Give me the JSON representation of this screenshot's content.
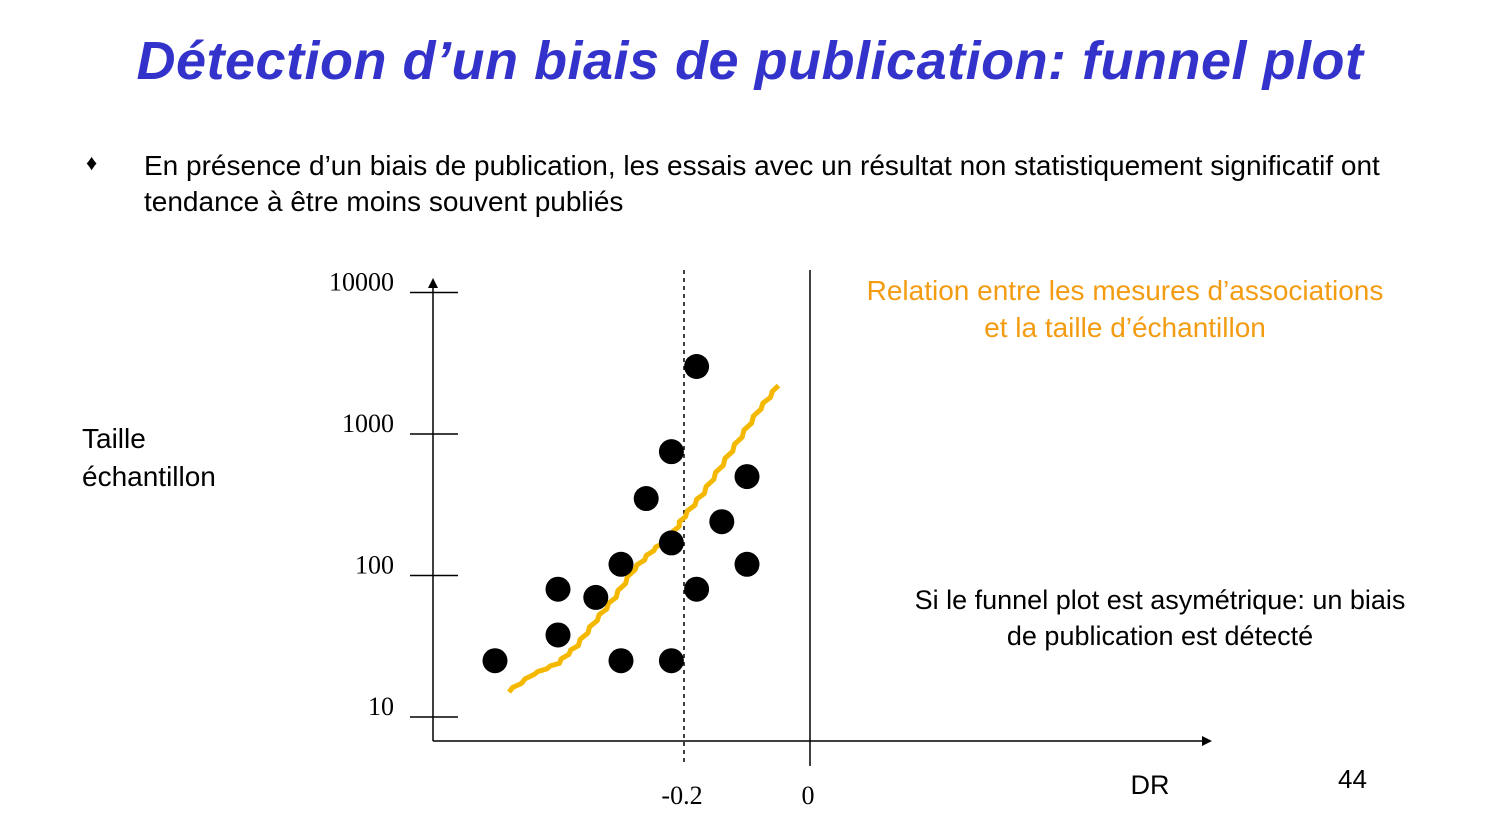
{
  "slide": {
    "title": "Détection d’un biais de publication: funnel plot",
    "bullet_marker": "♦",
    "bullet_text": "En présence d’un biais de publication, les essais avec un résultat non statistiquement significatif ont tendance à être moins souvent publiés",
    "y_axis_label": "Taille échantillon",
    "note_relation": "Relation entre les mesures d’associations et la taille d’échantillon",
    "note_asymmetry": "Si le funnel plot est asymétrique: un biais de publication est détecté",
    "page_number": "44"
  },
  "colors": {
    "title": "#3333cc",
    "trend_line": "#f5b800",
    "note_orange": "#f39c12",
    "points": "#000000"
  },
  "chart_data": {
    "type": "scatter",
    "title": "",
    "xlabel": "DR",
    "ylabel": "Taille échantillon",
    "x_ticks": [
      {
        "value": -0.2,
        "label": "-0.2"
      },
      {
        "value": 0,
        "label": "0"
      }
    ],
    "y_ticks": [
      {
        "value": 10,
        "label": "10"
      },
      {
        "value": 100,
        "label": "100"
      },
      {
        "value": 1000,
        "label": "1000"
      },
      {
        "value": 10000,
        "label": "10000"
      }
    ],
    "y_scale": "log",
    "xlim": [
      -0.6,
      0.65
    ],
    "ylim": [
      6,
      25000
    ],
    "reference_lines": [
      {
        "x": -0.2,
        "style": "dashed"
      },
      {
        "x": 0,
        "style": "solid"
      }
    ],
    "points": [
      {
        "x": -0.18,
        "y": 3000
      },
      {
        "x": -0.22,
        "y": 750
      },
      {
        "x": -0.1,
        "y": 500
      },
      {
        "x": -0.26,
        "y": 350
      },
      {
        "x": -0.14,
        "y": 240
      },
      {
        "x": -0.22,
        "y": 170
      },
      {
        "x": -0.3,
        "y": 120
      },
      {
        "x": -0.1,
        "y": 120
      },
      {
        "x": -0.4,
        "y": 80
      },
      {
        "x": -0.18,
        "y": 80
      },
      {
        "x": -0.34,
        "y": 70
      },
      {
        "x": -0.4,
        "y": 38
      },
      {
        "x": -0.5,
        "y": 25
      },
      {
        "x": -0.3,
        "y": 25
      },
      {
        "x": -0.22,
        "y": 25
      }
    ],
    "trend_line": [
      {
        "x": -0.48,
        "y": 15
      },
      {
        "x": -0.44,
        "y": 20
      },
      {
        "x": -0.4,
        "y": 24
      },
      {
        "x": -0.37,
        "y": 32
      },
      {
        "x": -0.34,
        "y": 48
      },
      {
        "x": -0.31,
        "y": 70
      },
      {
        "x": -0.28,
        "y": 110
      },
      {
        "x": -0.25,
        "y": 150
      },
      {
        "x": -0.22,
        "y": 190
      },
      {
        "x": -0.2,
        "y": 260
      },
      {
        "x": -0.17,
        "y": 380
      },
      {
        "x": -0.14,
        "y": 600
      },
      {
        "x": -0.11,
        "y": 950
      },
      {
        "x": -0.08,
        "y": 1500
      },
      {
        "x": -0.05,
        "y": 2200
      }
    ],
    "legend": "none",
    "grid": false
  }
}
